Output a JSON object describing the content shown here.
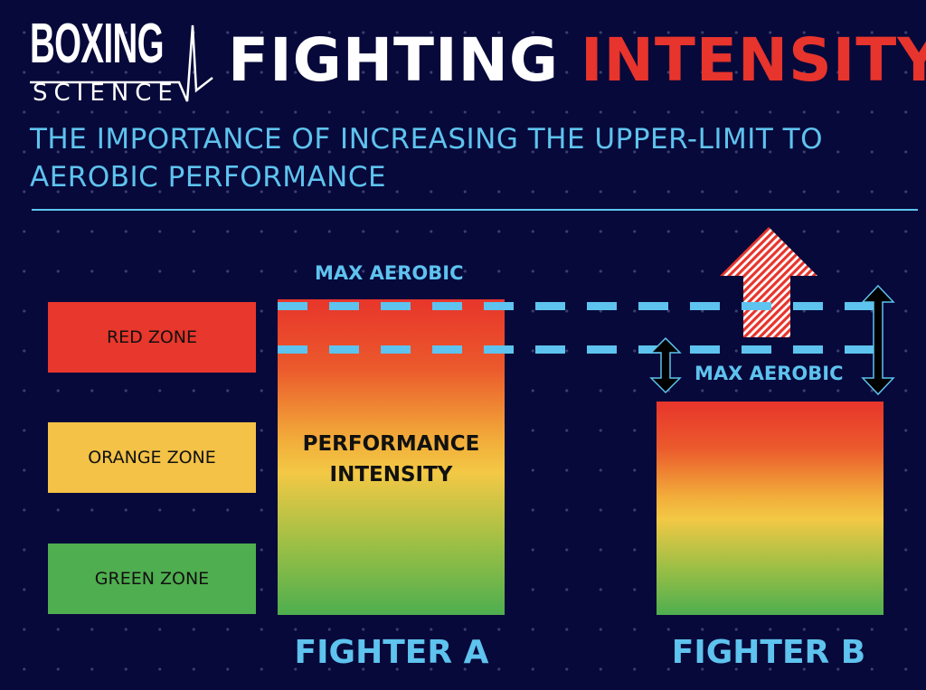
{
  "logo": {
    "line1": "BOXING",
    "line2": "SCIENCE"
  },
  "header": {
    "title_part1": "FIGHTING",
    "title_part2": "INTENSITY",
    "subtitle": "THE IMPORTANCE OF INCREASING THE UPPER-LIMIT TO AEROBIC PERFORMANCE"
  },
  "zones": [
    {
      "label": "RED ZONE",
      "color": "#e8372c"
    },
    {
      "label": "ORANGE ZONE",
      "color": "#f3c247"
    },
    {
      "label": "GREEN ZONE",
      "color": "#4fae4f"
    }
  ],
  "fighter_a": {
    "label": "FIGHTER A",
    "max_label": "MAX AEROBIC",
    "bar_text": "PERFORMANCE INTENSITY"
  },
  "fighter_b": {
    "label": "FIGHTER B",
    "max_label": "MAX AEROBIC"
  },
  "colors": {
    "background": "#07093a",
    "accent": "#5ec3ee",
    "red": "#e7342c"
  }
}
